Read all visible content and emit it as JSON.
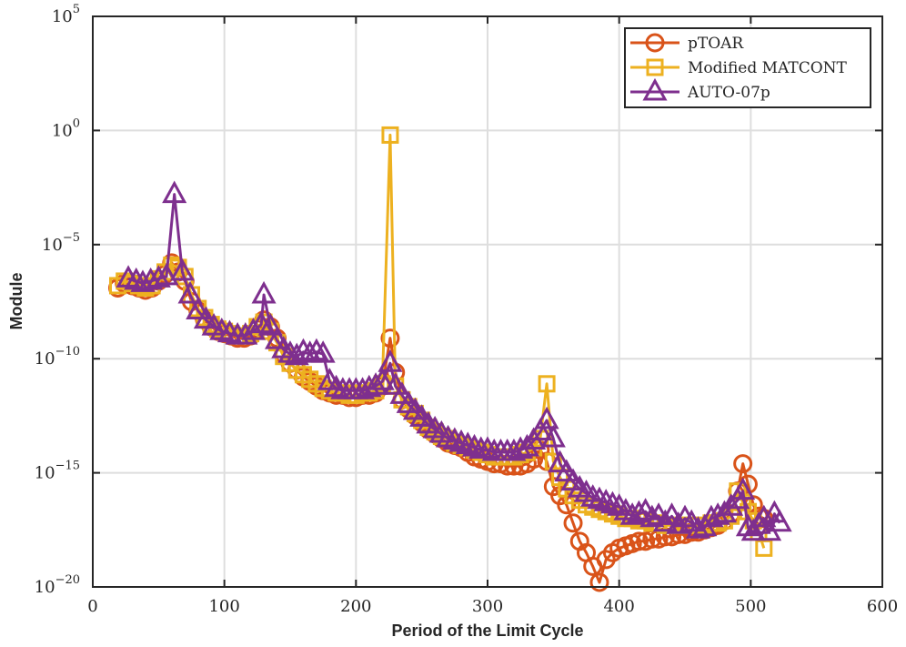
{
  "chart_data": {
    "type": "line",
    "title": "",
    "xlabel": "Period of the Limit Cycle",
    "ylabel": "Module",
    "xlim": [
      0,
      600
    ],
    "ylim_log10": [
      -20,
      5
    ],
    "y_scale": "log",
    "grid": true,
    "legend_position": "top-right",
    "x_ticks": [
      {
        "value": 0,
        "label": "0"
      },
      {
        "value": 100,
        "label": "100"
      },
      {
        "value": 200,
        "label": "200"
      },
      {
        "value": 300,
        "label": "300"
      },
      {
        "value": 400,
        "label": "400"
      },
      {
        "value": 500,
        "label": "500"
      },
      {
        "value": 600,
        "label": "600"
      }
    ],
    "y_ticks": [
      {
        "exp": 5,
        "base": "10",
        "sup": "5"
      },
      {
        "exp": 0,
        "base": "10",
        "sup": "0"
      },
      {
        "exp": -5,
        "base": "10",
        "sup": "−5"
      },
      {
        "exp": -10,
        "base": "10",
        "sup": "−10"
      },
      {
        "exp": -15,
        "base": "10",
        "sup": "−15"
      },
      {
        "exp": -20,
        "base": "10",
        "sup": "−20"
      }
    ],
    "series": [
      {
        "name": "pTOAR",
        "color": "#d95319",
        "marker": "circle",
        "x_values": [
          19,
          24,
          30,
          35,
          40,
          45,
          50,
          55,
          60,
          65,
          70,
          75,
          80,
          85,
          90,
          95,
          100,
          105,
          110,
          115,
          120,
          125,
          130,
          135,
          140,
          145,
          150,
          155,
          160,
          165,
          170,
          175,
          180,
          185,
          190,
          195,
          200,
          205,
          210,
          215,
          220,
          226,
          230,
          235,
          240,
          245,
          250,
          255,
          260,
          265,
          270,
          275,
          280,
          285,
          290,
          295,
          300,
          305,
          310,
          315,
          320,
          325,
          330,
          335,
          340,
          345,
          350,
          355,
          360,
          365,
          370,
          375,
          380,
          385,
          390,
          395,
          400,
          405,
          410,
          415,
          420,
          425,
          430,
          435,
          440,
          445,
          450,
          455,
          460,
          465,
          470,
          475,
          480,
          485,
          490,
          494,
          498,
          502,
          506,
          510
        ],
        "log10_values": [
          -6.9,
          -6.7,
          -6.8,
          -6.9,
          -7.0,
          -6.9,
          -6.6,
          -6.3,
          -5.8,
          -6.2,
          -6.6,
          -7.5,
          -7.9,
          -8.3,
          -8.6,
          -8.8,
          -8.9,
          -9.0,
          -9.1,
          -9.1,
          -9.0,
          -8.7,
          -8.3,
          -8.6,
          -9.1,
          -9.8,
          -10.2,
          -10.5,
          -10.8,
          -11.0,
          -11.2,
          -11.4,
          -11.5,
          -11.6,
          -11.6,
          -11.7,
          -11.7,
          -11.6,
          -11.6,
          -11.5,
          -11.2,
          -9.1,
          -10.6,
          -11.8,
          -12.2,
          -12.5,
          -12.8,
          -13.1,
          -13.3,
          -13.5,
          -13.7,
          -13.8,
          -13.9,
          -14.1,
          -14.3,
          -14.4,
          -14.5,
          -14.6,
          -14.6,
          -14.7,
          -14.7,
          -14.7,
          -14.6,
          -14.4,
          -14.0,
          -14.5,
          -15.6,
          -16.0,
          -16.4,
          -17.2,
          -18.0,
          -18.5,
          -19.1,
          -19.8,
          -18.8,
          -18.5,
          -18.3,
          -18.2,
          -18.1,
          -18.0,
          -18.0,
          -17.9,
          -17.9,
          -17.8,
          -17.8,
          -17.7,
          -17.7,
          -17.6,
          -17.6,
          -17.5,
          -17.4,
          -17.3,
          -17.1,
          -16.8,
          -15.8,
          -14.6,
          -15.5,
          -16.4,
          -16.9,
          -17.0
        ]
      },
      {
        "name": "Modified MATCONT",
        "color": "#edb120",
        "marker": "square",
        "x_values": [
          19,
          24,
          30,
          35,
          40,
          45,
          50,
          55,
          60,
          65,
          70,
          75,
          80,
          85,
          90,
          95,
          100,
          105,
          110,
          115,
          120,
          125,
          130,
          135,
          140,
          145,
          150,
          155,
          160,
          165,
          170,
          175,
          180,
          185,
          190,
          195,
          200,
          205,
          210,
          215,
          220,
          226,
          230,
          235,
          240,
          245,
          250,
          255,
          260,
          265,
          270,
          275,
          280,
          285,
          290,
          295,
          300,
          305,
          310,
          315,
          320,
          325,
          330,
          335,
          340,
          345,
          350,
          355,
          360,
          365,
          370,
          375,
          380,
          385,
          390,
          395,
          400,
          405,
          410,
          415,
          420,
          425,
          430,
          435,
          440,
          445,
          450,
          455,
          460,
          465,
          470,
          475,
          480,
          485,
          490,
          494,
          498,
          502,
          506,
          510
        ],
        "log10_values": [
          -6.8,
          -6.6,
          -6.7,
          -6.8,
          -6.9,
          -6.8,
          -6.5,
          -6.2,
          -5.9,
          -6.0,
          -6.4,
          -7.2,
          -7.8,
          -8.2,
          -8.5,
          -8.7,
          -8.8,
          -8.9,
          -9.0,
          -9.0,
          -8.9,
          -8.6,
          -8.4,
          -8.8,
          -9.3,
          -9.9,
          -10.2,
          -10.5,
          -10.7,
          -10.9,
          -11.1,
          -11.3,
          -11.4,
          -11.5,
          -11.5,
          -11.6,
          -11.6,
          -11.5,
          -11.5,
          -11.4,
          -11.1,
          -0.2,
          -11.2,
          -11.8,
          -12.1,
          -12.4,
          -12.7,
          -13.0,
          -13.2,
          -13.4,
          -13.5,
          -13.7,
          -13.8,
          -13.9,
          -14.0,
          -14.1,
          -14.2,
          -14.3,
          -14.3,
          -14.3,
          -14.3,
          -14.2,
          -14.1,
          -13.9,
          -13.5,
          -11.1,
          -14.5,
          -15.2,
          -15.7,
          -16.0,
          -16.2,
          -16.4,
          -16.5,
          -16.6,
          -16.7,
          -16.8,
          -16.9,
          -17.0,
          -17.0,
          -17.1,
          -17.1,
          -17.2,
          -17.2,
          -17.3,
          -17.3,
          -17.3,
          -17.3,
          -17.3,
          -17.3,
          -17.3,
          -17.2,
          -17.2,
          -17.1,
          -16.9,
          -15.8,
          -16.3,
          -16.7,
          -17.1,
          -17.6,
          -18.3
        ]
      },
      {
        "name": "AUTO-07p",
        "color": "#7e2f8e",
        "marker": "triangle",
        "x_values": [
          27,
          33,
          38,
          44,
          50,
          56,
          62,
          68,
          74,
          80,
          86,
          92,
          98,
          104,
          110,
          116,
          122,
          128,
          130,
          135,
          140,
          145,
          150,
          155,
          160,
          165,
          170,
          175,
          180,
          185,
          190,
          195,
          200,
          205,
          210,
          215,
          220,
          226,
          230,
          235,
          240,
          245,
          250,
          255,
          260,
          265,
          270,
          275,
          280,
          285,
          290,
          295,
          300,
          305,
          310,
          315,
          320,
          325,
          330,
          335,
          340,
          345,
          350,
          355,
          360,
          365,
          370,
          375,
          380,
          385,
          390,
          395,
          400,
          405,
          410,
          415,
          420,
          425,
          430,
          435,
          440,
          445,
          450,
          455,
          460,
          465,
          470,
          475,
          480,
          485,
          490,
          494,
          498,
          502,
          506,
          510,
          514,
          518,
          522
        ],
        "log10_values": [
          -6.5,
          -6.6,
          -6.7,
          -6.6,
          -6.5,
          -6.4,
          -2.8,
          -6.2,
          -7.2,
          -7.9,
          -8.3,
          -8.6,
          -8.8,
          -8.9,
          -9.0,
          -9.0,
          -8.8,
          -8.5,
          -7.2,
          -8.6,
          -9.2,
          -9.6,
          -9.8,
          -9.9,
          -9.7,
          -9.8,
          -9.7,
          -9.8,
          -11.0,
          -11.3,
          -11.4,
          -11.4,
          -11.4,
          -11.4,
          -11.3,
          -11.2,
          -11.0,
          -10.2,
          -11.2,
          -11.6,
          -12.0,
          -12.3,
          -12.6,
          -12.9,
          -13.1,
          -13.3,
          -13.5,
          -13.6,
          -13.7,
          -13.8,
          -13.9,
          -14.0,
          -14.0,
          -14.1,
          -14.1,
          -14.1,
          -14.1,
          -14.0,
          -13.9,
          -13.6,
          -13.2,
          -12.7,
          -13.5,
          -14.6,
          -15.0,
          -15.4,
          -15.7,
          -15.9,
          -16.1,
          -16.2,
          -16.3,
          -16.4,
          -16.5,
          -16.7,
          -16.9,
          -16.8,
          -16.7,
          -17.0,
          -16.9,
          -17.2,
          -16.9,
          -17.3,
          -17.0,
          -17.2,
          -17.5,
          -17.4,
          -17.0,
          -16.9,
          -16.8,
          -16.5,
          -16.2,
          -15.8,
          -17.4,
          -17.6,
          -17.3,
          -17.0,
          -17.6,
          -16.8,
          -17.2
        ]
      }
    ]
  }
}
